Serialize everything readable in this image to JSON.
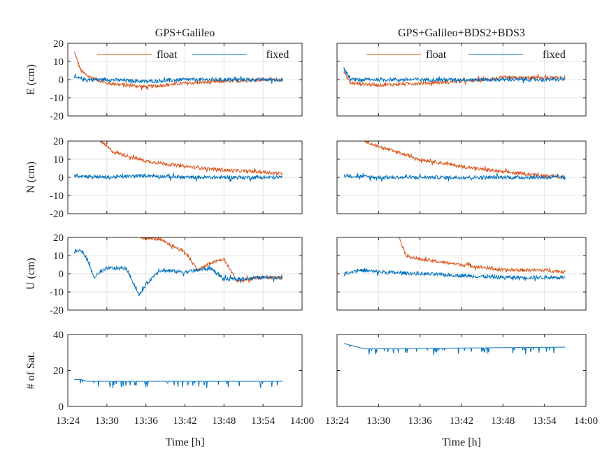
{
  "figure": {
    "column_titles": [
      "GPS+Galileo",
      "GPS+Galileo+BDS2+BDS3"
    ],
    "xlabel": "Time [h]",
    "x_ticks": [
      "13:24",
      "13:30",
      "13:36",
      "13:42",
      "13:48",
      "13:54",
      "14:00"
    ],
    "legend": {
      "float": "float",
      "fixed": "fixed"
    },
    "colors": {
      "float": "#d95319",
      "fixed": "#0072bd"
    }
  },
  "chart_data": [
    {
      "type": "line",
      "title": "GPS+Galileo",
      "xlabel": "",
      "ylabel": "E (cm)",
      "xlim": [
        "13:24",
        "14:00"
      ],
      "ylim": [
        -20,
        20
      ],
      "yticks": [
        -20,
        -10,
        0,
        10,
        20
      ],
      "grid": true,
      "legend": "top",
      "series": [
        {
          "name": "float",
          "x": [
            "13:25",
            "13:26",
            "13:27",
            "13:30",
            "13:36",
            "13:42",
            "13:48",
            "13:54",
            "13:57"
          ],
          "values": [
            15,
            5,
            2,
            -2,
            -4,
            -2,
            -1,
            0,
            0
          ]
        },
        {
          "name": "fixed",
          "x": [
            "13:25",
            "13:27",
            "13:30",
            "13:36",
            "13:42",
            "13:48",
            "13:54",
            "13:57"
          ],
          "values": [
            1,
            0,
            0,
            -1,
            0,
            0,
            0,
            0
          ]
        }
      ]
    },
    {
      "type": "line",
      "title": "GPS+Galileo+BDS2+BDS3",
      "xlabel": "",
      "ylabel": "",
      "xlim": [
        "13:24",
        "14:00"
      ],
      "ylim": [
        -20,
        20
      ],
      "yticks": [
        -20,
        -10,
        0,
        10,
        20
      ],
      "grid": true,
      "legend": "top",
      "series": [
        {
          "name": "float",
          "x": [
            "13:25",
            "13:26",
            "13:30",
            "13:36",
            "13:42",
            "13:48",
            "13:54",
            "13:57"
          ],
          "values": [
            4,
            -2,
            -3,
            -2,
            -1,
            1,
            1,
            1
          ]
        },
        {
          "name": "fixed",
          "x": [
            "13:25",
            "13:26",
            "13:30",
            "13:36",
            "13:42",
            "13:48",
            "13:54",
            "13:57"
          ],
          "values": [
            6,
            0,
            0,
            0,
            0,
            0,
            0,
            0
          ]
        }
      ]
    },
    {
      "type": "line",
      "xlabel": "",
      "ylabel": "N (cm)",
      "xlim": [
        "13:24",
        "14:00"
      ],
      "ylim": [
        -20,
        20
      ],
      "yticks": [
        -20,
        -10,
        0,
        10,
        20
      ],
      "grid": true,
      "series": [
        {
          "name": "float",
          "x": [
            "13:29",
            "13:31",
            "13:36",
            "13:42",
            "13:48",
            "13:54",
            "13:57"
          ],
          "values": [
            20,
            14,
            9,
            6,
            4,
            3,
            2
          ]
        },
        {
          "name": "fixed",
          "x": [
            "13:25",
            "13:30",
            "13:36",
            "13:42",
            "13:48",
            "13:54",
            "13:57"
          ],
          "values": [
            1,
            0,
            1,
            0,
            0,
            0,
            0
          ]
        }
      ]
    },
    {
      "type": "line",
      "xlabel": "",
      "ylabel": "",
      "xlim": [
        "13:24",
        "14:00"
      ],
      "ylim": [
        -20,
        20
      ],
      "yticks": [
        -20,
        -10,
        0,
        10,
        20
      ],
      "grid": true,
      "series": [
        {
          "name": "float",
          "x": [
            "13:28",
            "13:30",
            "13:36",
            "13:42",
            "13:48",
            "13:54",
            "13:57"
          ],
          "values": [
            20,
            17,
            10,
            6,
            3,
            1,
            0
          ]
        },
        {
          "name": "fixed",
          "x": [
            "13:25",
            "13:30",
            "13:36",
            "13:42",
            "13:48",
            "13:54",
            "13:57"
          ],
          "values": [
            1,
            0,
            0,
            0,
            0,
            0,
            0
          ]
        }
      ]
    },
    {
      "type": "line",
      "xlabel": "",
      "ylabel": "U (cm)",
      "xlim": [
        "13:24",
        "14:00"
      ],
      "ylim": [
        -20,
        20
      ],
      "yticks": [
        -20,
        -10,
        0,
        10,
        20
      ],
      "grid": true,
      "series": [
        {
          "name": "float",
          "x": [
            "13:35",
            "13:38",
            "13:42",
            "13:44",
            "13:46",
            "13:48",
            "13:50",
            "13:54",
            "13:57"
          ],
          "values": [
            20,
            19,
            12,
            2,
            6,
            8,
            -4,
            -2,
            -2
          ]
        },
        {
          "name": "fixed",
          "x": [
            "13:25",
            "13:26",
            "13:27",
            "13:28",
            "13:30",
            "13:33",
            "13:35",
            "13:36",
            "13:38",
            "13:42",
            "13:46",
            "13:48",
            "13:50",
            "13:54",
            "13:57"
          ],
          "values": [
            12,
            13,
            8,
            -2,
            3,
            3,
            -12,
            -6,
            2,
            1,
            3,
            -3,
            -3,
            -2,
            -2
          ]
        }
      ]
    },
    {
      "type": "line",
      "xlabel": "",
      "ylabel": "",
      "xlim": [
        "13:24",
        "14:00"
      ],
      "ylim": [
        -20,
        20
      ],
      "yticks": [
        -20,
        -10,
        0,
        10,
        20
      ],
      "grid": true,
      "series": [
        {
          "name": "float",
          "x": [
            "13:33",
            "13:34",
            "13:36",
            "13:42",
            "13:48",
            "13:54",
            "13:57"
          ],
          "values": [
            20,
            10,
            8,
            5,
            2,
            2,
            1
          ]
        },
        {
          "name": "fixed",
          "x": [
            "13:25",
            "13:27",
            "13:30",
            "13:36",
            "13:42",
            "13:48",
            "13:54",
            "13:57"
          ],
          "values": [
            0,
            2,
            1,
            0,
            -1,
            -2,
            -2,
            -2
          ]
        }
      ]
    },
    {
      "type": "line",
      "xlabel": "Time [h]",
      "ylabel": "# of Sat.",
      "xlim": [
        "13:24",
        "14:00"
      ],
      "ylim": [
        0,
        40
      ],
      "yticks": [
        0,
        20,
        40
      ],
      "grid": false,
      "series": [
        {
          "name": "fixed",
          "x": [
            "13:25",
            "13:26",
            "13:27",
            "13:28",
            "13:57"
          ],
          "values": [
            15,
            15,
            14,
            14,
            14
          ]
        }
      ]
    },
    {
      "type": "line",
      "xlabel": "Time [h]",
      "ylabel": "",
      "xlim": [
        "13:24",
        "14:00"
      ],
      "ylim": [
        0,
        40
      ],
      "yticks": [
        0,
        20,
        40
      ],
      "grid": false,
      "series": [
        {
          "name": "fixed",
          "x": [
            "13:25",
            "13:26",
            "13:27",
            "13:28",
            "13:57"
          ],
          "values": [
            35,
            34,
            33,
            32,
            33
          ]
        }
      ]
    }
  ]
}
